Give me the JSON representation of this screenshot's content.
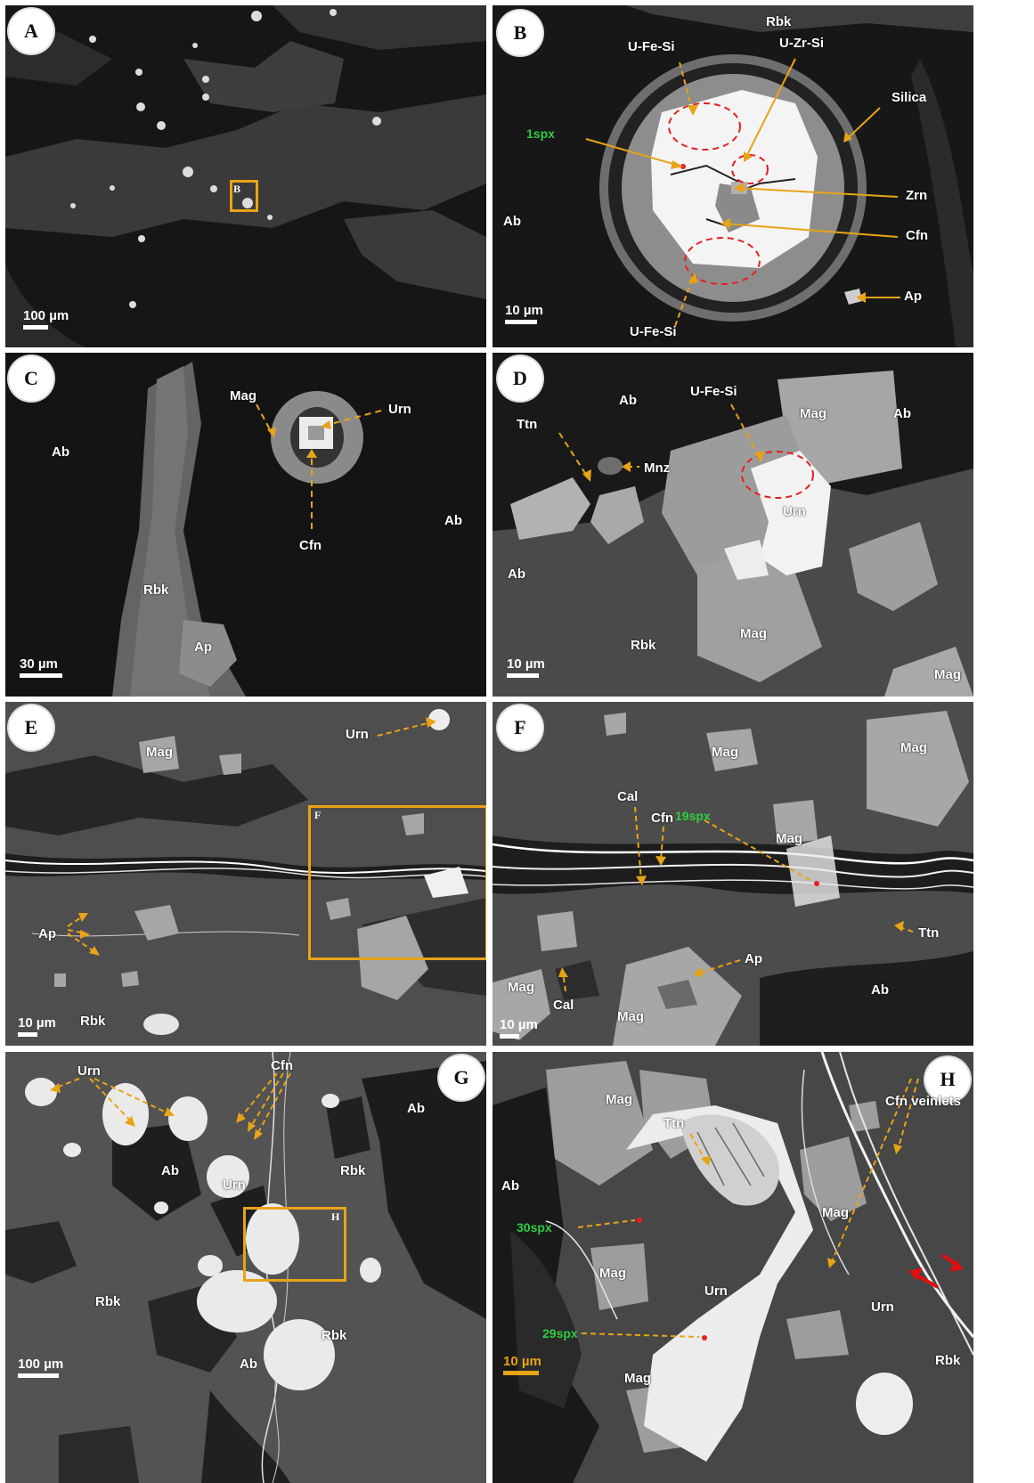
{
  "panels": {
    "A": {
      "letter": "A",
      "scale": "100 µm",
      "box_label": "B"
    },
    "B": {
      "letter": "B",
      "scale": "10 µm",
      "labels": {
        "rbk": "Rbk",
        "ufesi_top": "U-Fe-Si",
        "uzrsi": "U-Zr-Si",
        "silica": "Silica",
        "ab": "Ab",
        "zrn": "Zrn",
        "cfn": "Cfn",
        "ap": "Ap",
        "ufesi_bottom": "U-Fe-Si"
      },
      "spx": "1spx"
    },
    "C": {
      "letter": "C",
      "scale": "30 µm",
      "labels": {
        "mag": "Mag",
        "urn": "Urn",
        "ab_left": "Ab",
        "ab_right": "Ab",
        "cfn": "Cfn",
        "rbk": "Rbk",
        "ap": "Ap"
      }
    },
    "D": {
      "letter": "D",
      "scale": "10 µm",
      "labels": {
        "ab_top": "Ab",
        "ufesi": "U-Fe-Si",
        "mag_top": "Mag",
        "ab_right": "Ab",
        "ttn": "Ttn",
        "mnz": "Mnz",
        "urn": "Urn",
        "ab_left": "Ab",
        "rbk": "Rbk",
        "mag_center": "Mag",
        "mag_corner": "Mag"
      }
    },
    "E": {
      "letter": "E",
      "scale": "10 µm",
      "box_label": "F",
      "labels": {
        "urn": "Urn",
        "mag": "Mag",
        "ap": "Ap",
        "rbk": "Rbk"
      }
    },
    "F": {
      "letter": "F",
      "scale": "10 µm",
      "spx": "19spx",
      "labels": {
        "mag_top": "Mag",
        "mag_right": "Mag",
        "cal_top": "Cal",
        "cfn": "Cfn",
        "mag_mid": "Mag",
        "ttn": "Ttn",
        "ap": "Ap",
        "ab": "Ab",
        "mag_left": "Mag",
        "cal_bottom": "Cal",
        "mag_bottom": "Mag"
      }
    },
    "G": {
      "letter": "G",
      "scale": "100 µm",
      "box_label": "H",
      "labels": {
        "urn_top": "Urn",
        "cfn": "Cfn",
        "ab_top": "Ab",
        "ab_mid": "Ab",
        "urn_mid": "Urn",
        "rbk_right": "Rbk",
        "rbk_left": "Rbk",
        "rbk_bottom": "Rbk",
        "ab_bottom": "Ab"
      }
    },
    "H": {
      "letter": "H",
      "scale": "10 µm",
      "spx_top": "30spx",
      "spx_bottom": "29spx",
      "labels": {
        "mag_top": "Mag",
        "ttn": "Ttn",
        "cfn_veinlets": "Cfn veinlets",
        "ab": "Ab",
        "mag_right": "Mag",
        "mag_left": "Mag",
        "urn_center": "Urn",
        "urn_right": "Urn",
        "mag_bottom": "Mag",
        "rbk": "Rbk"
      }
    }
  },
  "colors": {
    "arrow_gold": "#e8a317",
    "highlight_circle": "#e62020",
    "spx_green": "#2ecc40",
    "shear_arrow": "#e01010"
  }
}
